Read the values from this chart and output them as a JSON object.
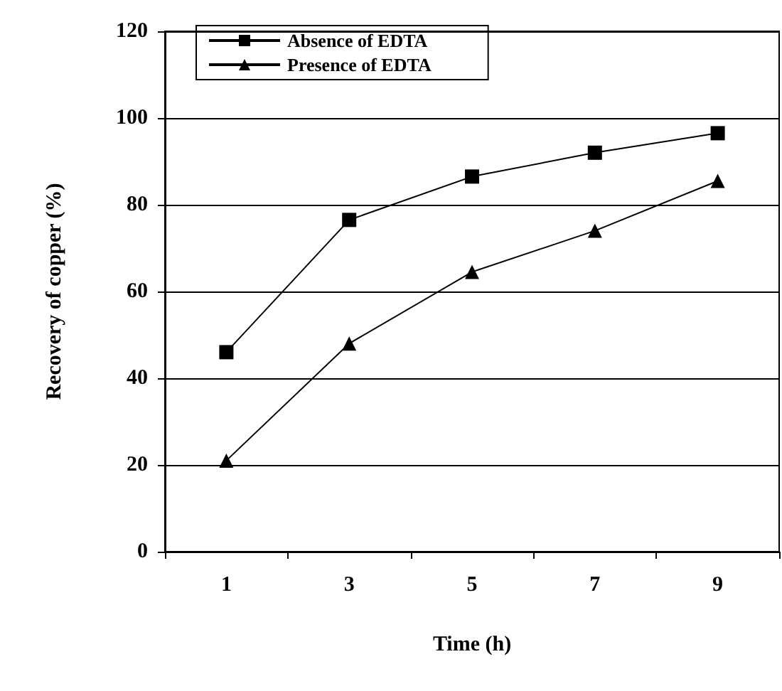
{
  "chart_data": {
    "type": "line",
    "xlabel": "Time (h)",
    "ylabel": "Recovery of copper (%)",
    "categories": [
      "1",
      "3",
      "5",
      "7",
      "9"
    ],
    "series": [
      {
        "name": "Absence of EDTA",
        "color": "#000000",
        "marker": "square",
        "values": [
          46,
          76.5,
          86.5,
          92,
          96.5
        ]
      },
      {
        "name": "Presence of EDTA",
        "color": "#000000",
        "marker": "triangle",
        "values": [
          21,
          48,
          64.5,
          74,
          85.5
        ]
      }
    ],
    "ylim": [
      0,
      120
    ],
    "yticks": [
      0,
      20,
      40,
      60,
      80,
      100,
      120
    ],
    "grid": "y",
    "legend": "top left",
    "line_style": "solid"
  }
}
